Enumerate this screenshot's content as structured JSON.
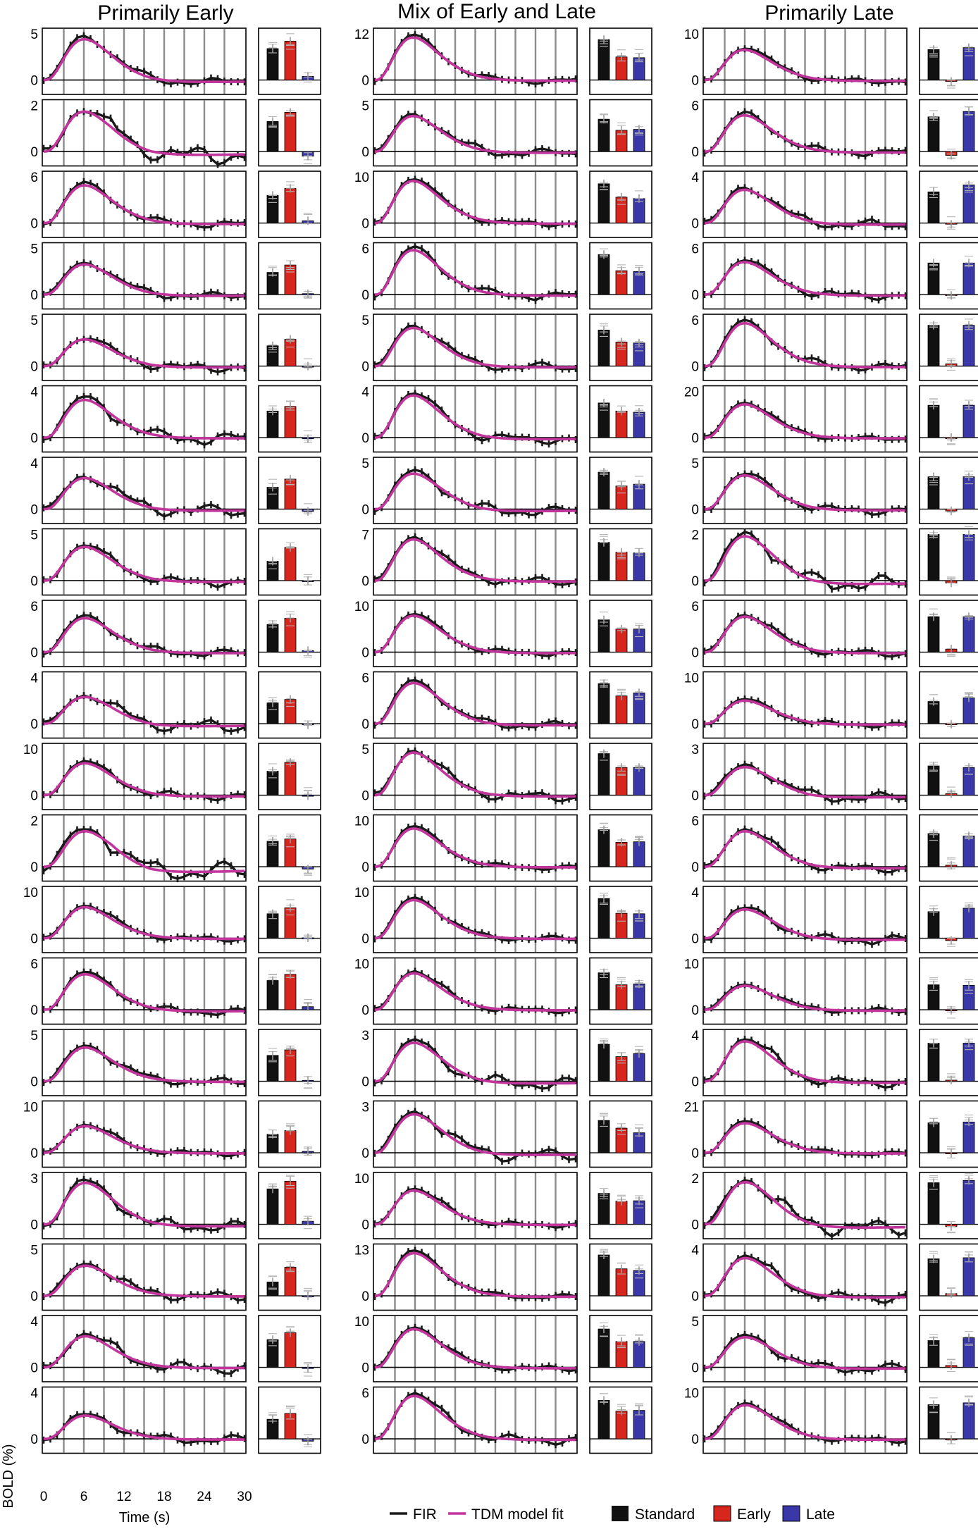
{
  "colors": {
    "fir": "#1a1a1a",
    "tdm": "#c2359c",
    "standard": "#111111",
    "early": "#d7261e",
    "late": "#3a37a8",
    "stim_lines": "#8c8c8c"
  },
  "legend": {
    "fir": "FIR",
    "tdm": "TDM model fit",
    "standard": "Standard",
    "early": "Early",
    "late": "Late"
  },
  "axes": {
    "xlabel": "Time (s)",
    "ylabel": "BOLD (%)",
    "xticks": [
      "0",
      "6",
      "12",
      "18",
      "24",
      "30"
    ],
    "xlim": [
      0,
      30
    ]
  },
  "chart_data": [
    {
      "type": "line",
      "title": "Primarily Early",
      "series_names": [
        "FIR",
        "TDM model fit"
      ],
      "bar_categories": [
        "Standard",
        "Early",
        "Late"
      ],
      "panels": [
        {
          "ymax": 5,
          "ymax_label": "5",
          "peak": 4.6,
          "tail": 0.3,
          "noise": 0.4,
          "bars": [
            3.4,
            4.2,
            0.4
          ]
        },
        {
          "ymax": 2,
          "ymax_label": "2",
          "peak": 1.8,
          "tail": 0.2,
          "noise": 0.35,
          "bars": [
            1.3,
            1.7,
            -0.2
          ]
        },
        {
          "ymax": 6,
          "ymax_label": "6",
          "peak": 5.1,
          "tail": 0.2,
          "noise": 0.4,
          "bars": [
            3.6,
            4.5,
            0.3
          ]
        },
        {
          "ymax": 5,
          "ymax_label": "5",
          "peak": 3.4,
          "tail": 0.2,
          "noise": 0.35,
          "bars": [
            2.4,
            3.2,
            0.1
          ]
        },
        {
          "ymax": 5,
          "ymax_label": "5",
          "peak": 3.0,
          "tail": 0.2,
          "noise": 0.4,
          "bars": [
            2.2,
            2.9,
            0.0
          ]
        },
        {
          "ymax": 4,
          "ymax_label": "4",
          "peak": 3.4,
          "tail": 0.1,
          "noise": 0.45,
          "bars": [
            2.3,
            2.7,
            -0.1
          ]
        },
        {
          "ymax": 4,
          "ymax_label": "4",
          "peak": 2.8,
          "tail": 0.2,
          "noise": 0.5,
          "bars": [
            1.9,
            2.6,
            -0.2
          ]
        },
        {
          "ymax": 5,
          "ymax_label": "5",
          "peak": 3.8,
          "tail": 0.2,
          "noise": 0.4,
          "bars": [
            2.1,
            3.6,
            0.0
          ]
        },
        {
          "ymax": 6,
          "ymax_label": "6",
          "peak": 4.6,
          "tail": 0.2,
          "noise": 0.4,
          "bars": [
            3.6,
            4.4,
            0.2
          ]
        },
        {
          "ymax": 4,
          "ymax_label": "4",
          "peak": 2.4,
          "tail": 0.3,
          "noise": 0.45,
          "bars": [
            1.8,
            2.1,
            -0.1
          ]
        },
        {
          "ymax": 10,
          "ymax_label": "10",
          "peak": 7.2,
          "tail": 0.4,
          "noise": 0.7,
          "bars": [
            5.2,
            7.1,
            -0.1
          ]
        },
        {
          "ymax": 2,
          "ymax_label": "2",
          "peak": 1.6,
          "tail": 0.3,
          "noise": 0.35,
          "bars": [
            1.1,
            1.2,
            -0.1
          ]
        },
        {
          "ymax": 10,
          "ymax_label": "10",
          "peak": 7.0,
          "tail": 0.2,
          "noise": 0.5,
          "bars": [
            5.3,
            6.6,
            0.1
          ]
        },
        {
          "ymax": 6,
          "ymax_label": "6",
          "peak": 4.8,
          "tail": 0.3,
          "noise": 0.4,
          "bars": [
            3.8,
            4.6,
            0.4
          ]
        },
        {
          "ymax": 5,
          "ymax_label": "5",
          "peak": 3.8,
          "tail": 0.1,
          "noise": 0.35,
          "bars": [
            2.8,
            3.4,
            0.1
          ]
        },
        {
          "ymax": 10,
          "ymax_label": "10",
          "peak": 6.0,
          "tail": 0.2,
          "noise": 0.5,
          "bars": [
            4.0,
            4.8,
            0.3
          ]
        },
        {
          "ymax": 3,
          "ymax_label": "3",
          "peak": 2.8,
          "tail": 0.2,
          "noise": 0.3,
          "bars": [
            2.3,
            2.8,
            0.2
          ]
        },
        {
          "ymax": 5,
          "ymax_label": "5",
          "peak": 3.4,
          "tail": 0.1,
          "noise": 0.45,
          "bars": [
            1.5,
            3.1,
            0.0
          ]
        },
        {
          "ymax": 4,
          "ymax_label": "4",
          "peak": 2.8,
          "tail": 0.1,
          "noise": 0.4,
          "bars": [
            2.4,
            3.0,
            -0.1
          ]
        },
        {
          "ymax": 4,
          "ymax_label": "4",
          "peak": 2.1,
          "tail": 0.1,
          "noise": 0.3,
          "bars": [
            1.7,
            2.2,
            -0.2
          ]
        }
      ]
    },
    {
      "type": "line",
      "title": "Mix of Early and Late",
      "series_names": [
        "FIR",
        "TDM model fit"
      ],
      "bar_categories": [
        "Standard",
        "Early",
        "Late"
      ],
      "panels": [
        {
          "ymax": 12,
          "ymax_label": "12",
          "peak": 11.5,
          "tail": 0.3,
          "noise": 0.6,
          "bars": [
            10.5,
            6.0,
            5.8
          ]
        },
        {
          "ymax": 5,
          "ymax_label": "5",
          "peak": 4.0,
          "tail": 0.2,
          "noise": 0.4,
          "bars": [
            3.5,
            2.3,
            2.4
          ]
        },
        {
          "ymax": 10,
          "ymax_label": "10",
          "peak": 9.5,
          "tail": 0.2,
          "noise": 0.5,
          "bars": [
            8.5,
            5.6,
            5.3
          ]
        },
        {
          "ymax": 6,
          "ymax_label": "6",
          "peak": 6.0,
          "tail": 0.2,
          "noise": 0.5,
          "bars": [
            5.2,
            3.1,
            3.0
          ]
        },
        {
          "ymax": 5,
          "ymax_label": "5",
          "peak": 4.3,
          "tail": 0.2,
          "noise": 0.4,
          "bars": [
            3.9,
            2.6,
            2.5
          ]
        },
        {
          "ymax": 4,
          "ymax_label": "4",
          "peak": 3.8,
          "tail": 0.2,
          "noise": 0.35,
          "bars": [
            3.0,
            2.3,
            2.2
          ]
        },
        {
          "ymax": 5,
          "ymax_label": "5",
          "peak": 4.0,
          "tail": 0.3,
          "noise": 0.45,
          "bars": [
            4.0,
            2.5,
            2.7
          ]
        },
        {
          "ymax": 7,
          "ymax_label": "7",
          "peak": 6.5,
          "tail": 0.2,
          "noise": 0.5,
          "bars": [
            5.8,
            4.3,
            4.2
          ]
        },
        {
          "ymax": 10,
          "ymax_label": "10",
          "peak": 8.2,
          "tail": 0.3,
          "noise": 0.5,
          "bars": [
            7.0,
            5.0,
            5.0
          ]
        },
        {
          "ymax": 6,
          "ymax_label": "6",
          "peak": 5.5,
          "tail": 0.3,
          "noise": 0.45,
          "bars": [
            5.2,
            3.6,
            4.0
          ]
        },
        {
          "ymax": 5,
          "ymax_label": "5",
          "peak": 4.8,
          "tail": 0.2,
          "noise": 0.45,
          "bars": [
            4.5,
            3.0,
            3.0
          ]
        },
        {
          "ymax": 10,
          "ymax_label": "10",
          "peak": 8.6,
          "tail": 0.2,
          "noise": 0.5,
          "bars": [
            8.0,
            5.3,
            5.4
          ]
        },
        {
          "ymax": 10,
          "ymax_label": "10",
          "peak": 8.6,
          "tail": 0.2,
          "noise": 0.5,
          "bars": [
            8.6,
            5.4,
            5.3
          ]
        },
        {
          "ymax": 10,
          "ymax_label": "10",
          "peak": 8.2,
          "tail": 0.2,
          "noise": 0.5,
          "bars": [
            8.0,
            5.4,
            5.6
          ]
        },
        {
          "ymax": 3,
          "ymax_label": "3",
          "peak": 2.6,
          "tail": 0.2,
          "noise": 0.35,
          "bars": [
            2.4,
            1.6,
            1.8
          ]
        },
        {
          "ymax": 3,
          "ymax_label": "3",
          "peak": 2.6,
          "tail": 0.2,
          "noise": 0.35,
          "bars": [
            2.1,
            1.6,
            1.3
          ]
        },
        {
          "ymax": 10,
          "ymax_label": "10",
          "peak": 7.6,
          "tail": 0.2,
          "noise": 0.5,
          "bars": [
            6.7,
            5.0,
            5.1
          ]
        },
        {
          "ymax": 13,
          "ymax_label": "13",
          "peak": 12.5,
          "tail": 0.4,
          "noise": 0.6,
          "bars": [
            11.5,
            7.6,
            7.1
          ]
        },
        {
          "ymax": 10,
          "ymax_label": "10",
          "peak": 8.6,
          "tail": 0.3,
          "noise": 0.5,
          "bars": [
            8.3,
            5.6,
            5.6
          ]
        },
        {
          "ymax": 6,
          "ymax_label": "6",
          "peak": 5.8,
          "tail": 0.2,
          "noise": 0.45,
          "bars": [
            5.0,
            3.6,
            3.7
          ]
        }
      ]
    },
    {
      "type": "line",
      "title": "Primarily Late",
      "series_names": [
        "FIR",
        "TDM model fit"
      ],
      "bar_categories": [
        "Standard",
        "Early",
        "Late"
      ],
      "panels": [
        {
          "ymax": 10,
          "ymax_label": "10",
          "peak": 6.8,
          "tail": 0.3,
          "noise": 0.5,
          "bars": [
            6.6,
            -0.3,
            7.0
          ]
        },
        {
          "ymax": 6,
          "ymax_label": "6",
          "peak": 4.9,
          "tail": 0.2,
          "noise": 0.4,
          "bars": [
            4.5,
            -0.5,
            5.2
          ]
        },
        {
          "ymax": 4,
          "ymax_label": "4",
          "peak": 3.0,
          "tail": 0.2,
          "noise": 0.35,
          "bars": [
            2.7,
            -0.1,
            3.3
          ]
        },
        {
          "ymax": 6,
          "ymax_label": "6",
          "peak": 4.4,
          "tail": 0.2,
          "noise": 0.45,
          "bars": [
            4.1,
            -0.1,
            4.1
          ]
        },
        {
          "ymax": 6,
          "ymax_label": "6",
          "peak": 5.8,
          "tail": 0.2,
          "noise": 0.45,
          "bars": [
            5.3,
            0.3,
            5.3
          ]
        },
        {
          "ymax": 20,
          "ymax_label": "20",
          "peak": 15.0,
          "tail": 0.5,
          "noise": 0.8,
          "bars": [
            14.0,
            0.0,
            14.0
          ]
        },
        {
          "ymax": 5,
          "ymax_label": "5",
          "peak": 3.8,
          "tail": 0.2,
          "noise": 0.4,
          "bars": [
            3.5,
            -0.2,
            3.5
          ]
        },
        {
          "ymax": 2,
          "ymax_label": "2",
          "peak": 2.0,
          "tail": 0.2,
          "noise": 0.3,
          "bars": [
            2.0,
            -0.1,
            2.0
          ]
        },
        {
          "ymax": 6,
          "ymax_label": "6",
          "peak": 4.8,
          "tail": 0.2,
          "noise": 0.4,
          "bars": [
            4.6,
            0.4,
            4.6
          ]
        },
        {
          "ymax": 10,
          "ymax_label": "10",
          "peak": 5.2,
          "tail": 0.3,
          "noise": 0.5,
          "bars": [
            4.8,
            -0.1,
            5.6
          ]
        },
        {
          "ymax": 3,
          "ymax_label": "3",
          "peak": 1.9,
          "tail": 0.2,
          "noise": 0.3,
          "bars": [
            1.9,
            0.1,
            1.8
          ]
        },
        {
          "ymax": 6,
          "ymax_label": "6",
          "peak": 4.8,
          "tail": 0.3,
          "noise": 0.45,
          "bars": [
            4.3,
            0.2,
            4.0
          ]
        },
        {
          "ymax": 4,
          "ymax_label": "4",
          "peak": 2.6,
          "tail": 0.2,
          "noise": 0.35,
          "bars": [
            2.3,
            -0.2,
            2.6
          ]
        },
        {
          "ymax": 10,
          "ymax_label": "10",
          "peak": 5.4,
          "tail": 0.3,
          "noise": 0.5,
          "bars": [
            5.4,
            -0.1,
            5.3
          ]
        },
        {
          "ymax": 4,
          "ymax_label": "4",
          "peak": 3.6,
          "tail": 0.2,
          "noise": 0.35,
          "bars": [
            3.3,
            0.1,
            3.3
          ]
        },
        {
          "ymax": 21,
          "ymax_label": "21",
          "peak": 14.0,
          "tail": 0.5,
          "noise": 0.8,
          "bars": [
            13.6,
            -0.2,
            14.0
          ]
        },
        {
          "ymax": 2,
          "ymax_label": "2",
          "peak": 1.9,
          "tail": 0.2,
          "noise": 0.3,
          "bars": [
            1.8,
            -0.1,
            1.9
          ]
        },
        {
          "ymax": 4,
          "ymax_label": "4",
          "peak": 3.4,
          "tail": 0.2,
          "noise": 0.35,
          "bars": [
            3.2,
            0.2,
            3.3
          ]
        },
        {
          "ymax": 5,
          "ymax_label": "5",
          "peak": 3.4,
          "tail": 0.2,
          "noise": 0.45,
          "bars": [
            2.9,
            0.2,
            3.2
          ]
        },
        {
          "ymax": 10,
          "ymax_label": "10",
          "peak": 7.6,
          "tail": 0.3,
          "noise": 0.5,
          "bars": [
            7.4,
            -0.1,
            7.8
          ]
        }
      ]
    }
  ]
}
